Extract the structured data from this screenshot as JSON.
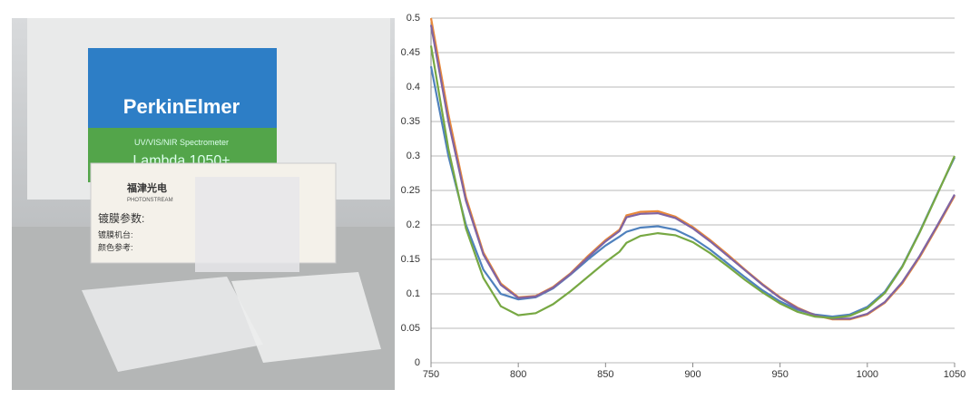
{
  "photo_labels": {
    "brand": "PerkinElmer",
    "model_line": "UV/VIS/NIR Spectrometer",
    "model": "Lambda 1050+",
    "company": "福津光电",
    "company_en": "PHOTONSTREAM",
    "field1": "镀膜参数:",
    "field2": "镀膜机台:",
    "field3": "颜色参考:"
  },
  "chart_data": {
    "type": "line",
    "x": [
      750,
      760,
      770,
      780,
      790,
      800,
      810,
      820,
      830,
      840,
      850,
      858,
      862,
      870,
      880,
      890,
      900,
      910,
      920,
      930,
      940,
      950,
      960,
      970,
      980,
      990,
      1000,
      1010,
      1020,
      1030,
      1040,
      1050
    ],
    "series": [
      {
        "color": "#4f81bd",
        "values": [
          0.43,
          0.3,
          0.2,
          0.135,
          0.1,
          0.092,
          0.095,
          0.108,
          0.128,
          0.15,
          0.17,
          0.183,
          0.19,
          0.196,
          0.198,
          0.193,
          0.181,
          0.164,
          0.144,
          0.124,
          0.105,
          0.089,
          0.077,
          0.07,
          0.067,
          0.07,
          0.081,
          0.103,
          0.14,
          0.19,
          0.245,
          0.298
        ]
      },
      {
        "color": "#e8883a",
        "values": [
          0.5,
          0.36,
          0.24,
          0.16,
          0.115,
          0.095,
          0.097,
          0.11,
          0.13,
          0.155,
          0.178,
          0.193,
          0.214,
          0.219,
          0.22,
          0.212,
          0.197,
          0.178,
          0.157,
          0.135,
          0.114,
          0.095,
          0.08,
          0.069,
          0.063,
          0.063,
          0.07,
          0.087,
          0.115,
          0.153,
          0.197,
          0.242
        ]
      },
      {
        "color": "#8064a2",
        "values": [
          0.49,
          0.35,
          0.235,
          0.157,
          0.113,
          0.094,
          0.096,
          0.109,
          0.129,
          0.153,
          0.176,
          0.191,
          0.211,
          0.216,
          0.217,
          0.21,
          0.195,
          0.176,
          0.155,
          0.134,
          0.113,
          0.094,
          0.079,
          0.069,
          0.064,
          0.064,
          0.071,
          0.088,
          0.117,
          0.155,
          0.199,
          0.244
        ]
      },
      {
        "color": "#77a843",
        "values": [
          0.46,
          0.31,
          0.195,
          0.123,
          0.082,
          0.069,
          0.072,
          0.085,
          0.104,
          0.125,
          0.146,
          0.161,
          0.174,
          0.184,
          0.188,
          0.185,
          0.175,
          0.159,
          0.14,
          0.12,
          0.102,
          0.086,
          0.074,
          0.067,
          0.065,
          0.068,
          0.079,
          0.101,
          0.139,
          0.189,
          0.244,
          0.3
        ]
      }
    ],
    "xlim": [
      750,
      1050
    ],
    "xticks": [
      750,
      800,
      850,
      900,
      950,
      1000,
      1050
    ],
    "ylim": [
      0,
      0.5
    ],
    "yticks": [
      0,
      0.05,
      0.1,
      0.15,
      0.2,
      0.25,
      0.3,
      0.35,
      0.4,
      0.45,
      0.5
    ],
    "grid": true
  }
}
